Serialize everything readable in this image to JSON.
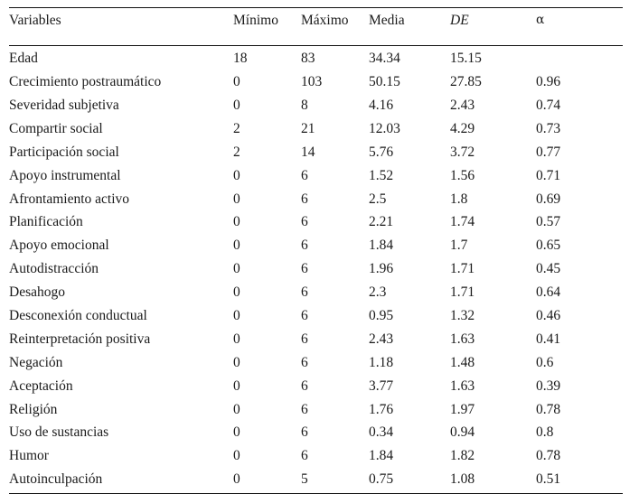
{
  "table": {
    "columns": [
      "Variables",
      "Mínimo",
      "Máximo",
      "Media",
      "DE",
      "α"
    ],
    "rows": [
      {
        "variable": "Edad",
        "min": "18",
        "max": "83",
        "mean": "34.34",
        "sd": "15.15",
        "alpha": ""
      },
      {
        "variable": "Crecimiento postraumático",
        "min": "0",
        "max": "103",
        "mean": "50.15",
        "sd": "27.85",
        "alpha": "0.96"
      },
      {
        "variable": "Severidad subjetiva",
        "min": "0",
        "max": "8",
        "mean": "4.16",
        "sd": "2.43",
        "alpha": "0.74"
      },
      {
        "variable": "Compartir social",
        "min": "2",
        "max": "21",
        "mean": "12.03",
        "sd": "4.29",
        "alpha": "0.73"
      },
      {
        "variable": "Participación social",
        "min": "2",
        "max": "14",
        "mean": "5.76",
        "sd": "3.72",
        "alpha": "0.77"
      },
      {
        "variable": "Apoyo instrumental",
        "min": "0",
        "max": "6",
        "mean": "1.52",
        "sd": "1.56",
        "alpha": "0.71"
      },
      {
        "variable": "Afrontamiento activo",
        "min": "0",
        "max": "6",
        "mean": "2.5",
        "sd": "1.8",
        "alpha": "0.69"
      },
      {
        "variable": "Planificación",
        "min": "0",
        "max": "6",
        "mean": "2.21",
        "sd": "1.74",
        "alpha": "0.57"
      },
      {
        "variable": "Apoyo emocional",
        "min": "0",
        "max": "6",
        "mean": "1.84",
        "sd": "1.7",
        "alpha": "0.65"
      },
      {
        "variable": "Autodistracción",
        "min": "0",
        "max": "6",
        "mean": "1.96",
        "sd": "1.71",
        "alpha": "0.45"
      },
      {
        "variable": "Desahogo",
        "min": "0",
        "max": "6",
        "mean": "2.3",
        "sd": "1.71",
        "alpha": "0.64"
      },
      {
        "variable": "Desconexión conductual",
        "min": "0",
        "max": "6",
        "mean": "0.95",
        "sd": "1.32",
        "alpha": "0.46"
      },
      {
        "variable": "Reinterpretación positiva",
        "min": "0",
        "max": "6",
        "mean": "2.43",
        "sd": "1.63",
        "alpha": "0.41"
      },
      {
        "variable": "Negación",
        "min": "0",
        "max": "6",
        "mean": "1.18",
        "sd": "1.48",
        "alpha": "0.6"
      },
      {
        "variable": "Aceptación",
        "min": "0",
        "max": "6",
        "mean": "3.77",
        "sd": "1.63",
        "alpha": "0.39"
      },
      {
        "variable": "Religión",
        "min": "0",
        "max": "6",
        "mean": "1.76",
        "sd": "1.97",
        "alpha": "0.78"
      },
      {
        "variable": "Uso de sustancias",
        "min": "0",
        "max": "6",
        "mean": "0.34",
        "sd": "0.94",
        "alpha": "0.8"
      },
      {
        "variable": "Humor",
        "min": "0",
        "max": "6",
        "mean": "1.84",
        "sd": "1.82",
        "alpha": "0.78"
      },
      {
        "variable": "Autoinculpación",
        "min": "0",
        "max": "5",
        "mean": "0.75",
        "sd": "1.08",
        "alpha": "0.51"
      }
    ]
  }
}
